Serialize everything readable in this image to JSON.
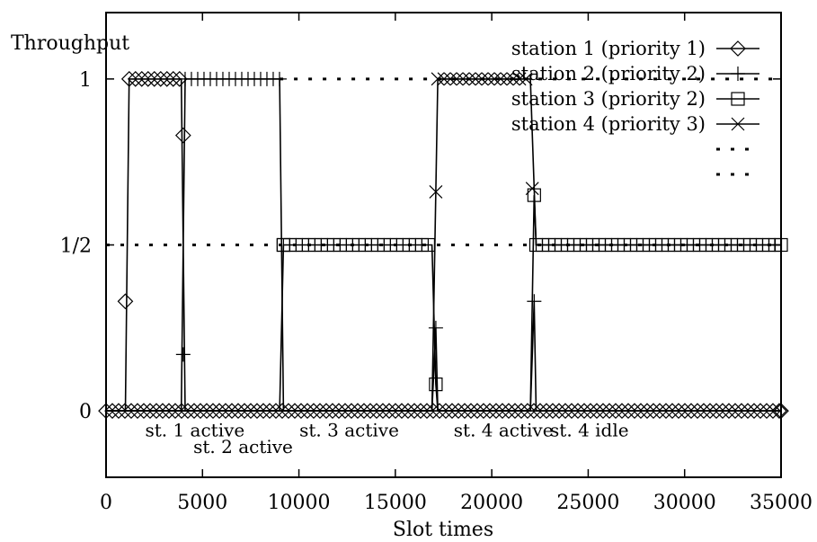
{
  "chart_data": {
    "type": "line",
    "title": "",
    "xlabel": "Slot times",
    "ylabel": "Throughput",
    "xlim": [
      0,
      35000
    ],
    "ylim": [
      -0.2,
      1.2
    ],
    "xticks": [
      {
        "value": 0,
        "label": "0"
      },
      {
        "value": 5000,
        "label": "5000"
      },
      {
        "value": 10000,
        "label": "10000"
      },
      {
        "value": 15000,
        "label": "15000"
      },
      {
        "value": 20000,
        "label": "20000"
      },
      {
        "value": 25000,
        "label": "25000"
      },
      {
        "value": 30000,
        "label": "30000"
      },
      {
        "value": 35000,
        "label": "35000"
      }
    ],
    "yticks": [
      {
        "value": 0,
        "label": "0"
      },
      {
        "value": 0.5,
        "label": "1/2"
      },
      {
        "value": 1,
        "label": "1"
      }
    ],
    "grid": false,
    "legend_position": "top-right",
    "series": [
      {
        "name": "station 1 (priority 1)",
        "marker": "diamond",
        "dash": "",
        "points": [
          [
            0,
            0
          ],
          [
            1000,
            0
          ],
          [
            1200,
            1
          ],
          [
            3900,
            1
          ],
          [
            4100,
            0
          ],
          [
            35000,
            0
          ]
        ],
        "markers": [
          [
            1000,
            0.33
          ],
          [
            4000,
            0.83
          ],
          [
            35000,
            0
          ]
        ]
      },
      {
        "name": "station 2 (priority 2)",
        "marker": "plus",
        "dash": "",
        "points": [
          [
            0,
            0
          ],
          [
            3900,
            0
          ],
          [
            4100,
            1
          ],
          [
            9000,
            1
          ],
          [
            9200,
            0
          ],
          [
            16900,
            0
          ],
          [
            17100,
            0.25
          ],
          [
            17200,
            0
          ],
          [
            22000,
            0
          ],
          [
            22200,
            0.33
          ],
          [
            22300,
            0
          ],
          [
            35000,
            0
          ]
        ],
        "markers": [
          [
            4000,
            0.17
          ],
          [
            17100,
            0.25
          ],
          [
            22200,
            0.33
          ]
        ]
      },
      {
        "name": "station 3 (priority 2)",
        "marker": "square",
        "dash": "",
        "points": [
          [
            0,
            0
          ],
          [
            9000,
            0
          ],
          [
            9200,
            0.5
          ],
          [
            16900,
            0.5
          ],
          [
            17100,
            0.08
          ],
          [
            17200,
            0
          ],
          [
            22000,
            0
          ],
          [
            22200,
            0.65
          ],
          [
            22300,
            0.5
          ],
          [
            35000,
            0.5
          ]
        ],
        "markers": [
          [
            9200,
            0.5
          ],
          [
            17100,
            0.08
          ],
          [
            22200,
            0.65
          ],
          [
            35000,
            0.5
          ]
        ]
      },
      {
        "name": "station 4 (priority 3)",
        "marker": "cross",
        "dash": "",
        "points": [
          [
            0,
            0
          ],
          [
            16900,
            0
          ],
          [
            17200,
            1
          ],
          [
            22000,
            1
          ],
          [
            22300,
            0.5
          ],
          [
            35000,
            0.5
          ]
        ],
        "markers": [
          [
            17100,
            0.66
          ],
          [
            22100,
            0.67
          ]
        ]
      },
      {
        "name": "",
        "marker": "none",
        "dash": "4 12",
        "points": [
          [
            9000,
            1
          ],
          [
            35000,
            1
          ]
        ],
        "markers": []
      },
      {
        "name": "",
        "marker": "none",
        "dash": "4 12",
        "points": [
          [
            0,
            0.5
          ],
          [
            35000,
            0.5
          ]
        ],
        "markers": []
      }
    ],
    "annotations": [
      {
        "text": "st. 1 active",
        "x": 1000,
        "y": -0.06
      },
      {
        "text": "st. 3 active",
        "x": 9000,
        "y": -0.06
      },
      {
        "text": "st. 4 active",
        "x": 17000,
        "y": -0.06
      },
      {
        "text": "st. 4 idle",
        "x": 22000,
        "y": -0.06
      },
      {
        "text": "st. 2 active",
        "x": 3500,
        "y": -0.11
      }
    ]
  }
}
